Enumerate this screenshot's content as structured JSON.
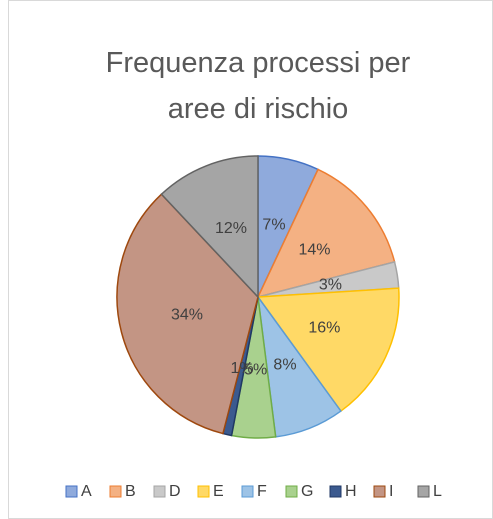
{
  "chart_data": {
    "type": "pie",
    "title": "Frequenza processi per aree di rischio",
    "categories": [
      "A",
      "B",
      "D",
      "E",
      "F",
      "G",
      "H",
      "I",
      "L"
    ],
    "values": [
      7,
      14,
      3,
      16,
      8,
      5,
      1,
      34,
      12
    ],
    "value_labels": [
      "7%",
      "14%",
      "3%",
      "16%",
      "8%",
      "5%",
      "1%",
      "34%",
      "12%"
    ],
    "colors": [
      "#8faadc",
      "#f4b183",
      "#c9c9c9",
      "#ffd966",
      "#9dc3e6",
      "#a9d18e",
      "#3b5a8f",
      "#c39584",
      "#a5a5a5"
    ],
    "edge_colors": [
      "#4472c4",
      "#ed7d31",
      "#a5a5a5",
      "#ffc000",
      "#5b9bd5",
      "#70ad47",
      "#203864",
      "#9e480e",
      "#636363"
    ],
    "legend": "bottom"
  }
}
